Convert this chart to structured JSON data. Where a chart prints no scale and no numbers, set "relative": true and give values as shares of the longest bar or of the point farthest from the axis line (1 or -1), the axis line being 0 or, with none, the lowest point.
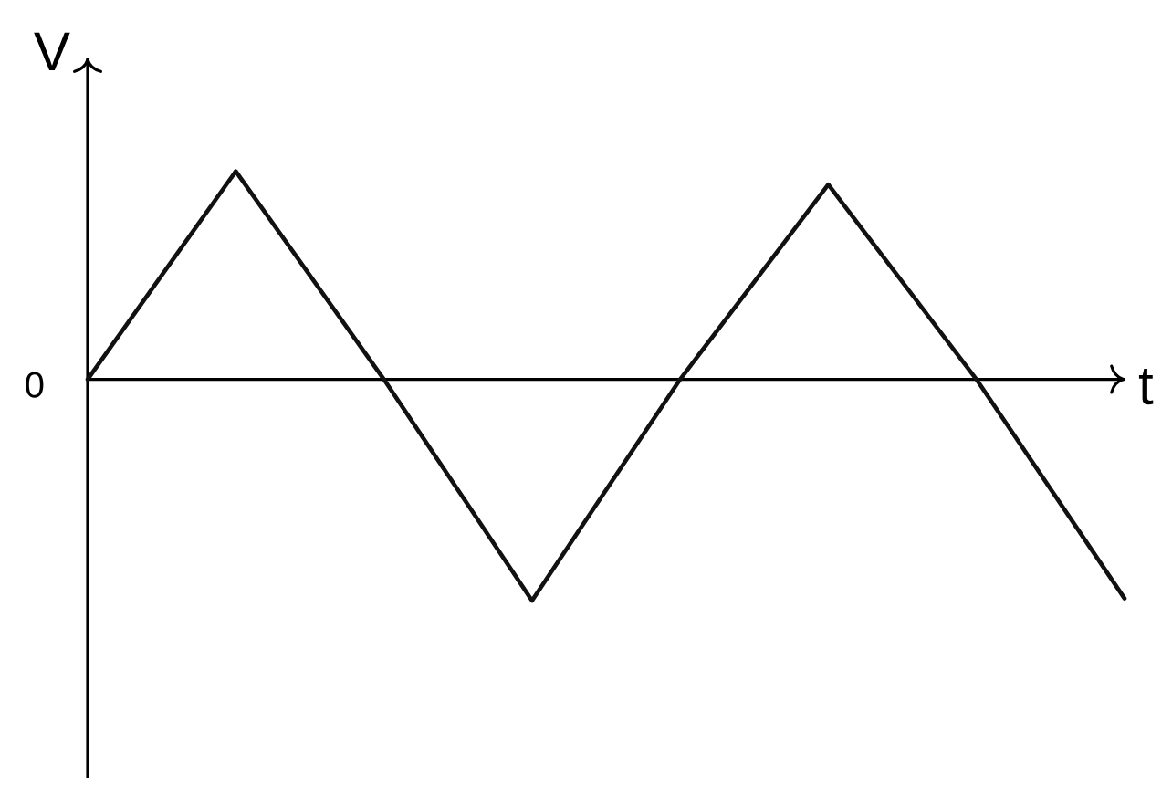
{
  "chart_data": {
    "type": "line",
    "xlabel": "t",
    "ylabel": "V",
    "annotations": [
      "0"
    ],
    "categories": [
      null,
      null,
      null,
      null,
      null,
      null,
      null,
      null
    ],
    "relative": true,
    "series": [
      {
        "color": "#111111",
        "values": [
          0,
          0.94,
          0,
          -1,
          0,
          0.88,
          0,
          -0.99
        ]
      }
    ],
    "marker": "none",
    "line_style": "solid"
  }
}
